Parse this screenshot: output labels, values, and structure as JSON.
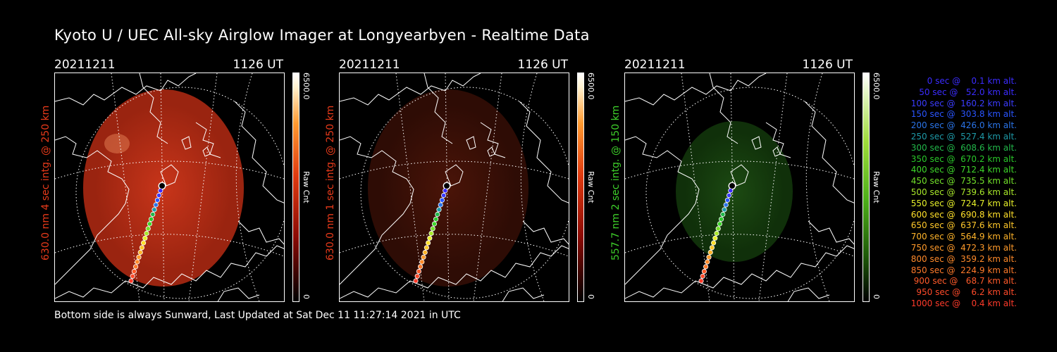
{
  "title": "Kyoto U / UEC All-sky Airglow Imager at Longyearbyen - Realtime Data",
  "footer": "Bottom side is always Sunward, Last Updated at Sat Dec 11 11:27:14 2021 in UTC",
  "panels": [
    {
      "date": "20211211",
      "time": "1126 UT",
      "side_label": "630.0 nm 4 sec intg. @ 250 km",
      "side_color": "#e83a1a",
      "cbar_max": "6500.0",
      "cbar_min": "0",
      "cbar_label": "Raw Cnt",
      "colormap": "red",
      "intensity": "bright"
    },
    {
      "date": "20211211",
      "time": "1126 UT",
      "side_label": "630.0 nm 1 sec intg. @ 250 km",
      "side_color": "#e83a1a",
      "cbar_max": "6500.0",
      "cbar_min": "0",
      "cbar_label": "Raw Cnt",
      "colormap": "red",
      "intensity": "dim"
    },
    {
      "date": "20211211",
      "time": "1126 UT",
      "side_label": "557.7 nm 2 sec intg. @ 150 km",
      "side_color": "#3ecf2a",
      "cbar_max": "6500.0",
      "cbar_min": "0",
      "cbar_label": "Raw Cnt",
      "colormap": "green",
      "intensity": "dim"
    }
  ],
  "legend": [
    {
      "text": "   0 sec @    0.1 km alt.",
      "color": "#3b2cff"
    },
    {
      "text": "  50 sec @   52.0 km alt.",
      "color": "#3b2cff"
    },
    {
      "text": " 100 sec @  160.2 km alt.",
      "color": "#3b3cff"
    },
    {
      "text": " 150 sec @  303.8 km alt.",
      "color": "#2a55ff"
    },
    {
      "text": " 200 sec @  426.0 km alt.",
      "color": "#2a74e8"
    },
    {
      "text": " 250 sec @  527.4 km alt.",
      "color": "#1e9aa8"
    },
    {
      "text": " 300 sec @  608.6 km alt.",
      "color": "#22b84a"
    },
    {
      "text": " 350 sec @  670.2 km alt.",
      "color": "#2ac82a"
    },
    {
      "text": " 400 sec @  712.4 km alt.",
      "color": "#3ed62a"
    },
    {
      "text": " 450 sec @  735.5 km alt.",
      "color": "#72e02a"
    },
    {
      "text": " 500 sec @  739.6 km alt.",
      "color": "#a8e82a"
    },
    {
      "text": " 550 sec @  724.7 km alt.",
      "color": "#e6f02a"
    },
    {
      "text": " 600 sec @  690.8 km alt.",
      "color": "#ffe02a"
    },
    {
      "text": " 650 sec @  637.6 km alt.",
      "color": "#ffc82a"
    },
    {
      "text": " 700 sec @  564.9 km alt.",
      "color": "#ffb42a"
    },
    {
      "text": " 750 sec @  472.3 km alt.",
      "color": "#ff9a2a"
    },
    {
      "text": " 800 sec @  359.2 km alt.",
      "color": "#ff8a2a"
    },
    {
      "text": " 850 sec @  224.9 km alt.",
      "color": "#ff7a2a"
    },
    {
      "text": " 900 sec @   68.7 km alt.",
      "color": "#ff5a2a"
    },
    {
      "text": " 950 sec @    6.2 km alt.",
      "color": "#ff4a2a"
    },
    {
      "text": "1000 sec @    0.4 km alt.",
      "color": "#ff3a2a"
    }
  ]
}
